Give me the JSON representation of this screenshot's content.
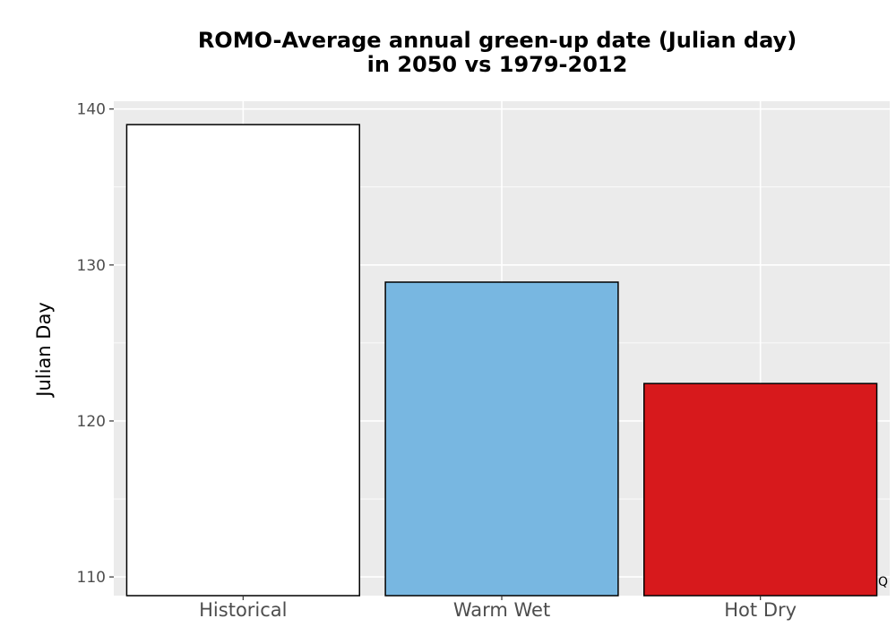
{
  "chart_data": {
    "type": "bar",
    "title_line1": "ROMO-Average annual green-up date (Julian day)",
    "title_line2": "in 2050 vs 1979-2012",
    "xlabel": "",
    "ylabel": "Julian Day",
    "categories": [
      "Historical",
      "Warm Wet",
      "Hot Dry"
    ],
    "values": [
      139.0,
      128.9,
      122.4
    ],
    "colors": [
      "#ffffff",
      "#78b7e1",
      "#d7191c"
    ],
    "ylim": [
      108.8,
      140.5
    ],
    "yticks": [
      110,
      120,
      130,
      140
    ],
    "ytick_labels": [
      "110",
      "120",
      "130",
      "140"
    ],
    "grid": true,
    "panel_background": "#ebebeb",
    "corner_mark": "Q"
  }
}
